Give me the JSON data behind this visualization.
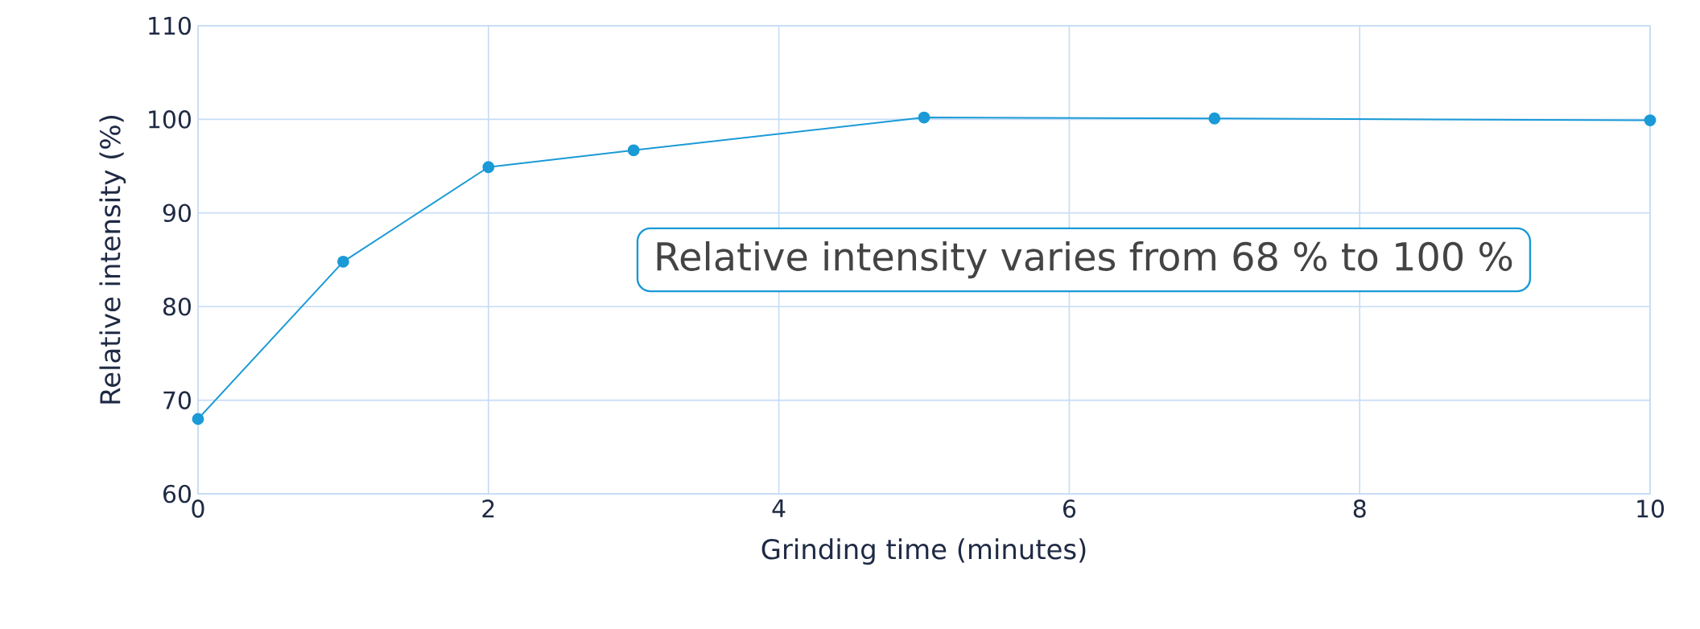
{
  "chart_data": {
    "type": "line",
    "xlabel": "Grinding time (minutes)",
    "ylabel": "Relative intensity (%)",
    "x": [
      0,
      1,
      2,
      3,
      5,
      7,
      10
    ],
    "values": [
      68,
      84.8,
      94.9,
      96.7,
      100.2,
      100.1,
      99.9
    ],
    "color": "#1a9ad6",
    "marker": "circle",
    "line_style": "solid",
    "grid": true,
    "xlim": [
      0,
      10
    ],
    "ylim": [
      60,
      110
    ],
    "xticks": [
      0,
      2,
      4,
      6,
      8,
      10
    ],
    "yticks": [
      60,
      70,
      80,
      90,
      100,
      110
    ],
    "annotations": [
      "Relative intensity varies from 68 % to 100 %"
    ]
  }
}
